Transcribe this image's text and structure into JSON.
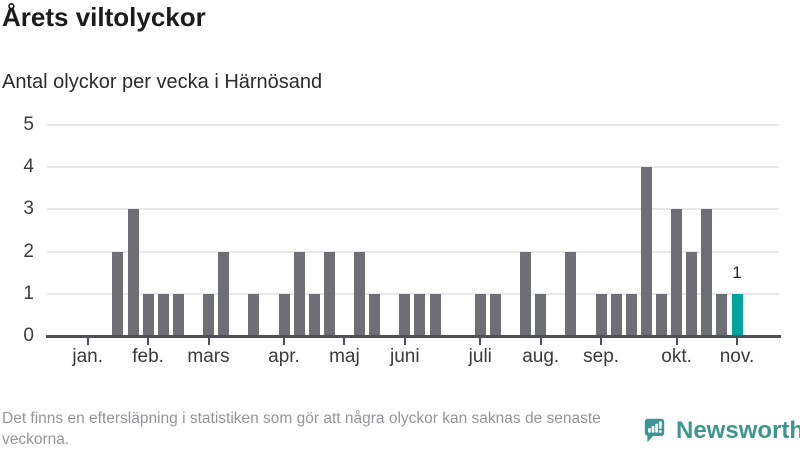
{
  "title": "Årets viltolyckor",
  "subtitle": "Antal olyckor per vecka i Härnösand",
  "footer": {
    "disclaimer": "Det finns en eftersläpning i statistiken som gör att några olyckor kan saknas de senaste veckorna.",
    "brand": "Newsworthy"
  },
  "colors": {
    "bar": "#6e6e75",
    "highlight": "#00a39d",
    "brand": "#3f968f",
    "grid": "#e8e8e8",
    "axis": "#4d5055",
    "axis_text": "#3c3c3e",
    "muted_text": "#94959a"
  },
  "chart_data": {
    "type": "bar",
    "title": "Årets viltolyckor",
    "subtitle": "Antal olyckor per vecka i Härnösand",
    "x_unit": "week",
    "ylim": [
      0,
      5
    ],
    "yticks": [
      0,
      1,
      2,
      3,
      4,
      5
    ],
    "grid": true,
    "legend": "none",
    "values": [
      0,
      0,
      2,
      3,
      1,
      1,
      1,
      0,
      1,
      2,
      0,
      1,
      0,
      1,
      2,
      1,
      2,
      0,
      2,
      1,
      0,
      1,
      1,
      1,
      0,
      0,
      1,
      1,
      0,
      2,
      1,
      0,
      2,
      0,
      1,
      1,
      1,
      4,
      1,
      3,
      2,
      3,
      1,
      1
    ],
    "month_ticks": [
      {
        "label": "jan.",
        "week": 1
      },
      {
        "label": "feb.",
        "week": 5
      },
      {
        "label": "mars",
        "week": 9
      },
      {
        "label": "apr.",
        "week": 14
      },
      {
        "label": "maj",
        "week": 18
      },
      {
        "label": "juni",
        "week": 22
      },
      {
        "label": "juli",
        "week": 27
      },
      {
        "label": "aug.",
        "week": 31
      },
      {
        "label": "sep.",
        "week": 35
      },
      {
        "label": "okt.",
        "week": 40
      },
      {
        "label": "nov.",
        "week": 44
      }
    ],
    "highlight_last": true,
    "last_value_label": "1"
  }
}
